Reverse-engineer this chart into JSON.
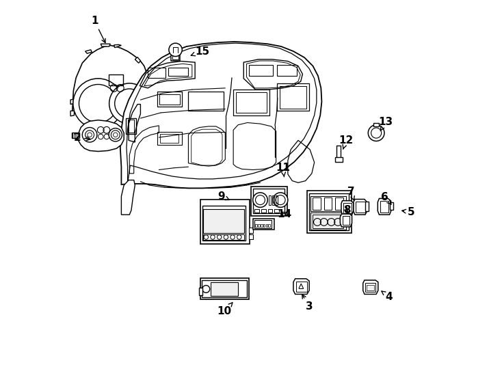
{
  "bg_color": "#ffffff",
  "line_color": "#000000",
  "lw": 1.0,
  "fig_width": 7.34,
  "fig_height": 5.4,
  "dpi": 100,
  "label_positions": {
    "1": [
      0.075,
      0.945,
      0.108,
      0.878
    ],
    "2": [
      0.028,
      0.628,
      0.072,
      0.622
    ],
    "3": [
      0.658,
      0.168,
      0.635,
      0.208
    ],
    "4": [
      0.875,
      0.195,
      0.848,
      0.215
    ],
    "5": [
      0.935,
      0.425,
      0.902,
      0.43
    ],
    "6": [
      0.862,
      0.465,
      0.882,
      0.445
    ],
    "7": [
      0.772,
      0.48,
      0.78,
      0.455
    ],
    "8": [
      0.76,
      0.43,
      0.768,
      0.42
    ],
    "9": [
      0.42,
      0.468,
      0.448,
      0.455
    ],
    "10": [
      0.428,
      0.155,
      0.455,
      0.185
    ],
    "11": [
      0.587,
      0.545,
      0.59,
      0.52
    ],
    "12": [
      0.758,
      0.62,
      0.748,
      0.59
    ],
    "13": [
      0.865,
      0.67,
      0.848,
      0.64
    ],
    "14": [
      0.59,
      0.42,
      0.575,
      0.43
    ],
    "15": [
      0.368,
      0.862,
      0.33,
      0.848
    ]
  }
}
